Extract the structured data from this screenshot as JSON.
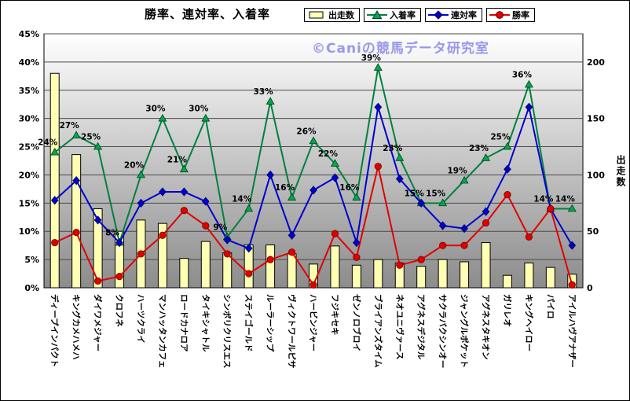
{
  "colors": {
    "bar_fill": "#FFFFB3",
    "bar_edge": "#000000",
    "green": "#008040",
    "green_marker": "#00A84C",
    "blue": "#0000D0",
    "blue_marker": "#0000D0",
    "red": "#E00000",
    "red_marker": "#E00000",
    "watermark": "#9898EC",
    "grid": "#4A4A4A",
    "axis": "#000000",
    "plot_top": "#FFFFFF",
    "plot_bottom": "#8C8C8C"
  },
  "chart_data": {
    "type": "bar+line combo",
    "title": "勝率、連対率、入着率",
    "watermark": "©Caniの競馬データ研究室",
    "right_axis_title": "出走数",
    "legend": [
      "出走数",
      "入着率",
      "連対率",
      "勝率"
    ],
    "left_axis": {
      "min": 0,
      "max": 45,
      "step": 5,
      "ticks": [
        "0%",
        "5%",
        "10%",
        "15%",
        "20%",
        "25%",
        "30%",
        "35%",
        "40%",
        "45%"
      ]
    },
    "right_axis": {
      "min": 0,
      "max": 225,
      "ticks": [
        "0",
        "50",
        "100",
        "150",
        "200"
      ],
      "tick_percent_positions": [
        0,
        10,
        20,
        30,
        40
      ]
    },
    "categories": [
      "ディープインパクト",
      "キングカメハメハ",
      "ダイワメジャー",
      "クロフネ",
      "ハーツクライ",
      "マンハッタンカフェ",
      "ロードカナロア",
      "タイキシャトル",
      "シンボリクリスエス",
      "ステイゴールド",
      "ルーラーシップ",
      "ヴィクトワールピサ",
      "ハービンジャー",
      "フジキセキ",
      "ゼンノロブロイ",
      "ブライアンズタイム",
      "ネオユニヴァース",
      "アグネスデジタル",
      "サクラバクシンオー",
      "ジャングルポケット",
      "アグネスタキオン",
      "ガリレオ",
      "キングヘイロー",
      "パイロ",
      "アイルハヴアナザー"
    ],
    "series": [
      {
        "name": "出走数",
        "type": "bar",
        "axis": "right",
        "values": [
          190,
          118,
          70,
          50,
          60,
          57,
          26,
          41,
          31,
          38,
          38,
          30,
          21,
          37,
          20,
          25,
          22,
          19,
          25,
          23,
          40,
          11,
          22,
          18,
          12
        ]
      },
      {
        "name": "入着率",
        "type": "line",
        "marker": "triangle",
        "axis": "left",
        "labels": true,
        "values": [
          24,
          27,
          25,
          8,
          20,
          30,
          21,
          30,
          9,
          14,
          33,
          16,
          26,
          22,
          16,
          39,
          23,
          15,
          15,
          19,
          23,
          25,
          36,
          14,
          14
        ]
      },
      {
        "name": "連対率",
        "type": "line",
        "marker": "diamond",
        "axis": "left",
        "labels": false,
        "values": [
          15.5,
          19,
          12,
          8,
          15,
          17,
          17,
          15.3,
          8.5,
          7,
          20,
          9.3,
          17.3,
          19.5,
          8,
          32,
          19.3,
          15,
          11,
          10.5,
          13.5,
          21,
          32,
          14,
          7.5
        ]
      },
      {
        "name": "勝率",
        "type": "line",
        "marker": "circle",
        "axis": "left",
        "labels": false,
        "values": [
          8,
          9.8,
          1.2,
          2,
          6,
          9.3,
          13.7,
          11,
          6,
          2.5,
          5,
          6.3,
          0.5,
          9.6,
          5.4,
          21.5,
          4,
          5,
          7.5,
          7.5,
          11.5,
          16.5,
          9,
          14,
          0.5
        ]
      }
    ]
  }
}
